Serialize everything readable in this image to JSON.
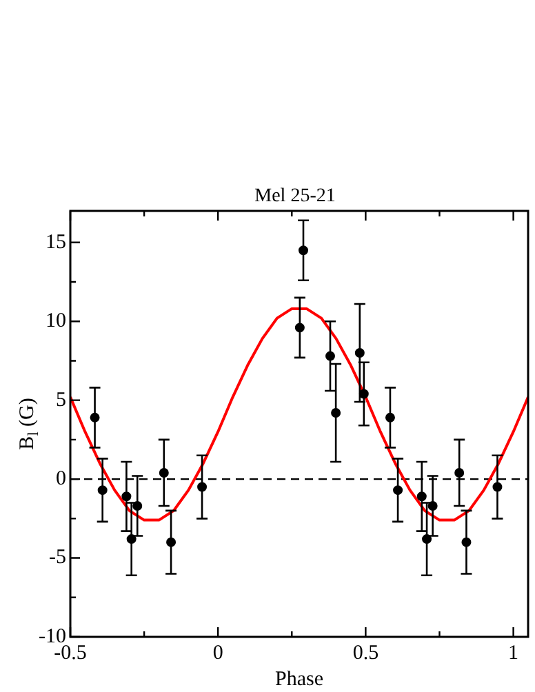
{
  "chart_data": {
    "type": "scatter",
    "title": "Mel 25-21",
    "xlabel": "Phase",
    "ylabel": "B$_{l}$ (G)",
    "xlim": [
      -0.5,
      1.05
    ],
    "xticks": [
      -0.5,
      {
        "value": -0.25,
        "label": null
      },
      0,
      {
        "value": 0.25,
        "label": null
      },
      0.5,
      {
        "value": 0.75,
        "label": null
      },
      1
    ],
    "ylim": [
      -10,
      17
    ],
    "yticks": [
      -10,
      {
        "value": -7.5,
        "label": null
      },
      -5,
      {
        "value": -2.5,
        "label": null
      },
      0,
      {
        "value": 2.5,
        "label": null
      },
      5,
      {
        "value": 7.5,
        "label": null
      },
      10,
      {
        "value": 12.5,
        "label": null
      },
      15
    ],
    "grid": false,
    "legend": false,
    "marker": "circle",
    "series": [
      {
        "type": "scatter",
        "color": "#000000",
        "x": [
          -0.417,
          -0.391,
          -0.31,
          -0.293,
          -0.273,
          -0.183,
          -0.159,
          -0.054,
          0.277,
          0.289,
          0.38,
          0.399,
          0.48,
          0.494,
          0.583,
          0.609,
          0.69,
          0.707,
          0.727,
          0.817,
          0.841,
          0.946
        ],
        "values": [
          3.9,
          -0.7,
          -1.1,
          -3.8,
          -1.7,
          0.4,
          -4.0,
          -0.5,
          9.6,
          14.5,
          7.8,
          4.2,
          8.0,
          5.4,
          3.9,
          -0.7,
          -1.1,
          -3.8,
          -1.7,
          0.4,
          -4.0,
          -0.5
        ],
        "errors": [
          1.9,
          2.0,
          2.2,
          2.3,
          1.9,
          2.1,
          2.0,
          2.0,
          1.9,
          1.9,
          2.2,
          3.1,
          3.1,
          2.0,
          1.9,
          2.0,
          2.2,
          2.3,
          1.9,
          2.1,
          2.0,
          2.0
        ]
      },
      {
        "type": "line",
        "color": "#ff0000",
        "marker": "none",
        "x": [
          -0.5,
          -0.45,
          -0.4,
          -0.35,
          -0.3,
          -0.25,
          -0.2,
          -0.15,
          -0.1,
          -0.05,
          0,
          0.05,
          0.1,
          0.15,
          0.2,
          0.25,
          0.3,
          0.35,
          0.4,
          0.45,
          0.5,
          0.55,
          0.6,
          0.65,
          0.7,
          0.75,
          0.8,
          0.85,
          0.9,
          0.95,
          1.0,
          1.05
        ],
        "values": [
          5.2,
          3.0,
          1.0,
          -0.7,
          -2.0,
          -2.6,
          -2.6,
          -2.0,
          -0.7,
          1.0,
          3.0,
          5.2,
          7.2,
          8.9,
          10.2,
          10.8,
          10.8,
          10.2,
          8.9,
          7.2,
          5.2,
          3.0,
          1.0,
          -0.7,
          -2.0,
          -2.6,
          -2.6,
          -2.0,
          -0.7,
          1.0,
          3.0,
          5.2
        ]
      }
    ],
    "ref_lines": [
      {
        "axis": "y",
        "value": 0,
        "color": "#000000",
        "line_style": "dashed"
      }
    ]
  }
}
